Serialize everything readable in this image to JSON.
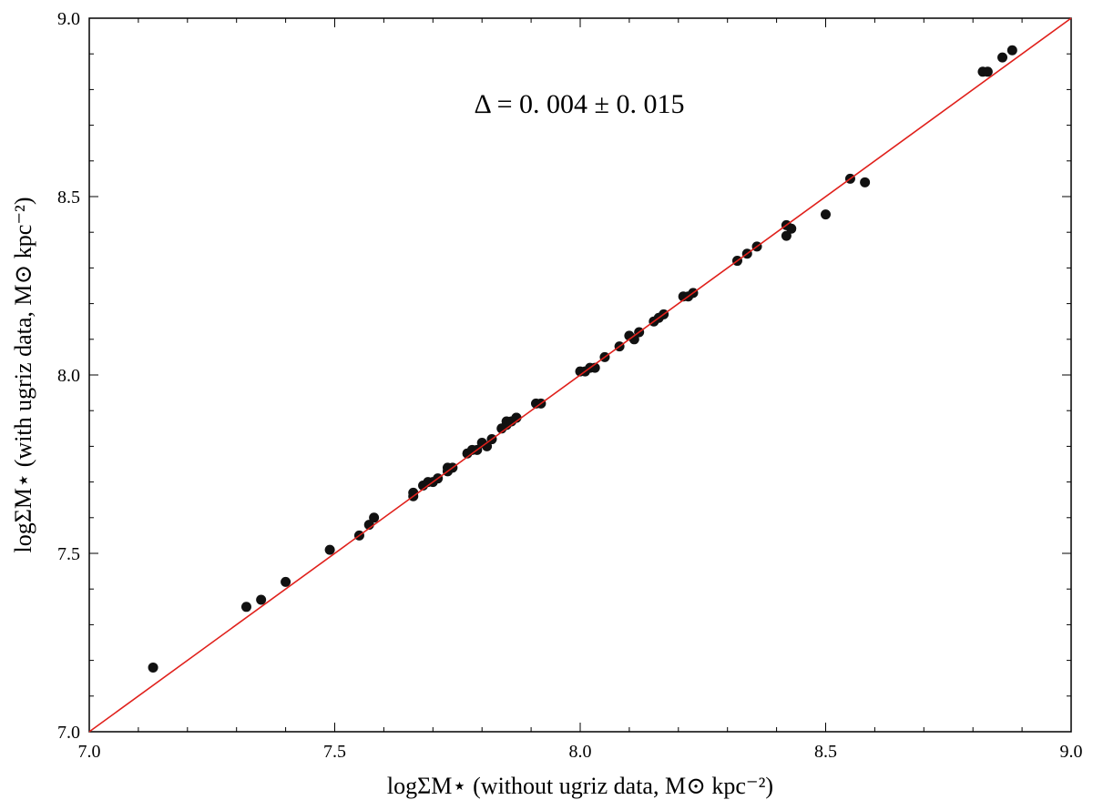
{
  "chart_data": {
    "type": "scatter",
    "xlabel": "logΣM⋆ (without ugriz data, M⊙ kpc⁻²)",
    "ylabel": "logΣM⋆ (with ugriz data, M⊙ kpc⁻²)",
    "xlim": [
      7.0,
      9.0
    ],
    "ylim": [
      7.0,
      9.0
    ],
    "x_ticks": [
      "7.0",
      "7.5",
      "8.0",
      "8.5",
      "9.0"
    ],
    "y_ticks": [
      "7.0",
      "7.5",
      "8.0",
      "8.5",
      "9.0"
    ],
    "x_tick_values": [
      7.0,
      7.5,
      8.0,
      8.5,
      9.0
    ],
    "y_tick_values": [
      7.0,
      7.5,
      8.0,
      8.5,
      9.0
    ],
    "grid": false,
    "annotation": "Δ = 0. 004 ± 0. 015",
    "reference_line": {
      "x": [
        7.0,
        9.0
      ],
      "y": [
        7.0,
        9.0
      ],
      "color": "#e0201b"
    },
    "point_color": "#111111",
    "points": [
      [
        7.13,
        7.18
      ],
      [
        7.32,
        7.35
      ],
      [
        7.35,
        7.37
      ],
      [
        7.4,
        7.42
      ],
      [
        7.49,
        7.51
      ],
      [
        7.55,
        7.55
      ],
      [
        7.57,
        7.58
      ],
      [
        7.58,
        7.6
      ],
      [
        7.66,
        7.67
      ],
      [
        7.66,
        7.66
      ],
      [
        7.68,
        7.69
      ],
      [
        7.69,
        7.7
      ],
      [
        7.7,
        7.7
      ],
      [
        7.71,
        7.71
      ],
      [
        7.73,
        7.74
      ],
      [
        7.73,
        7.73
      ],
      [
        7.74,
        7.74
      ],
      [
        7.77,
        7.78
      ],
      [
        7.78,
        7.79
      ],
      [
        7.79,
        7.79
      ],
      [
        7.8,
        7.81
      ],
      [
        7.81,
        7.8
      ],
      [
        7.82,
        7.82
      ],
      [
        7.84,
        7.85
      ],
      [
        7.85,
        7.86
      ],
      [
        7.85,
        7.87
      ],
      [
        7.86,
        7.87
      ],
      [
        7.87,
        7.88
      ],
      [
        7.87,
        7.88
      ],
      [
        7.91,
        7.92
      ],
      [
        7.92,
        7.92
      ],
      [
        8.0,
        8.01
      ],
      [
        8.01,
        8.01
      ],
      [
        8.02,
        8.02
      ],
      [
        8.03,
        8.02
      ],
      [
        8.05,
        8.05
      ],
      [
        8.08,
        8.08
      ],
      [
        8.1,
        8.11
      ],
      [
        8.11,
        8.1
      ],
      [
        8.12,
        8.12
      ],
      [
        8.15,
        8.15
      ],
      [
        8.16,
        8.16
      ],
      [
        8.17,
        8.17
      ],
      [
        8.21,
        8.22
      ],
      [
        8.22,
        8.22
      ],
      [
        8.23,
        8.23
      ],
      [
        8.32,
        8.32
      ],
      [
        8.34,
        8.34
      ],
      [
        8.36,
        8.36
      ],
      [
        8.42,
        8.42
      ],
      [
        8.42,
        8.39
      ],
      [
        8.43,
        8.41
      ],
      [
        8.5,
        8.45
      ],
      [
        8.55,
        8.55
      ],
      [
        8.58,
        8.54
      ],
      [
        8.82,
        8.85
      ],
      [
        8.83,
        8.85
      ],
      [
        8.86,
        8.89
      ],
      [
        8.88,
        8.91
      ]
    ]
  }
}
